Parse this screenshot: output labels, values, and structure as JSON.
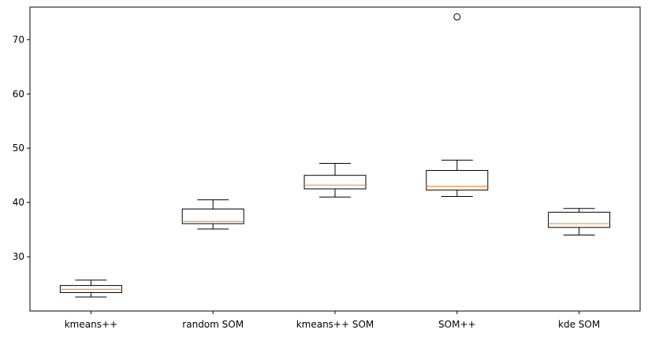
{
  "chart_data": {
    "type": "box",
    "categories": [
      "kmeans++",
      "random SOM",
      "kmeans++ SOM",
      "SOM++",
      "kde SOM"
    ],
    "boxes": [
      {
        "name": "kmeans++",
        "whislo": 22.6,
        "q1": 23.4,
        "med": 24.0,
        "q3": 24.7,
        "whishi": 25.7,
        "fliers": []
      },
      {
        "name": "random SOM",
        "whislo": 35.1,
        "q1": 36.1,
        "med": 36.5,
        "q3": 38.8,
        "whishi": 40.5,
        "fliers": []
      },
      {
        "name": "kmeans++ SOM",
        "whislo": 41.0,
        "q1": 42.5,
        "med": 43.2,
        "q3": 45.0,
        "whishi": 47.2,
        "fliers": []
      },
      {
        "name": "SOM++",
        "whislo": 41.1,
        "q1": 42.3,
        "med": 43.0,
        "q3": 45.9,
        "whishi": 47.8,
        "fliers": [
          74.2
        ]
      },
      {
        "name": "kde SOM",
        "whislo": 34.0,
        "q1": 35.4,
        "med": 36.1,
        "q3": 38.2,
        "whishi": 38.9,
        "fliers": []
      }
    ],
    "yticks": [
      30,
      40,
      50,
      60,
      70
    ],
    "ylim": [
      20.0,
      76.0
    ],
    "title": "",
    "xlabel": "",
    "ylabel": "",
    "grid": false,
    "colors": {
      "box": "#000000",
      "median": "#ff7f0e",
      "background": "#ffffff"
    }
  }
}
